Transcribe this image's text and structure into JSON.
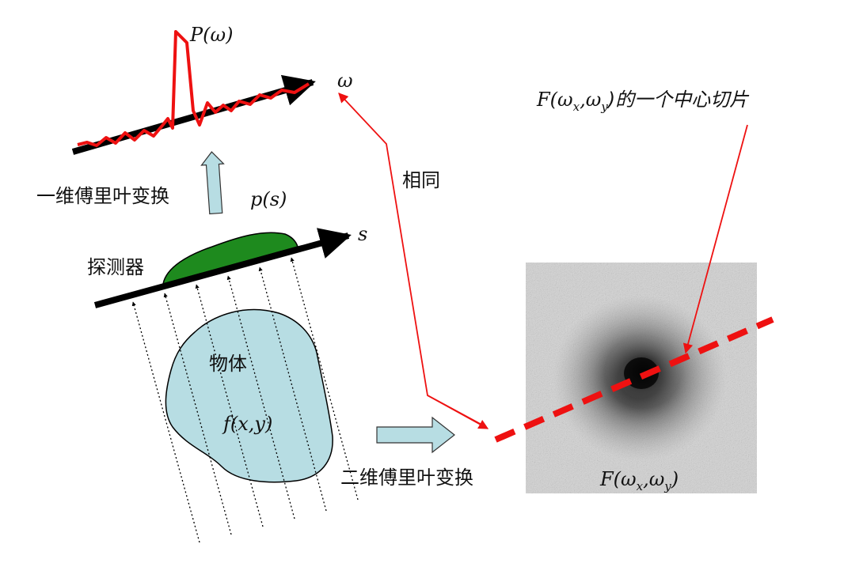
{
  "labels": {
    "p_omega": "P(ω)",
    "omega": "ω",
    "fourier_1d": "一维傅里叶变换",
    "p_s": "p(s)",
    "s_axis": "s",
    "detector": "探测器",
    "object": "物体",
    "f_xy": "f(x,y)",
    "fourier_2d": "二维傅里叶变换",
    "same": "相同",
    "slice_caption_main": "F(ω",
    "slice_caption_sub1": "x",
    "slice_caption_comma": ",ω",
    "slice_caption_sub2": "y",
    "slice_caption_tail": ")的一个中心切片",
    "F_main": "F(ω",
    "F_sub1": "x",
    "F_comma": ",ω",
    "F_sub2": "y",
    "F_tail": ")"
  },
  "colors": {
    "red": "#ee1111",
    "object_fill": "#b7dde3",
    "detector_fill": "#1e8a1e",
    "arrow_fill": "#b7dde3",
    "axis": "#000000"
  }
}
